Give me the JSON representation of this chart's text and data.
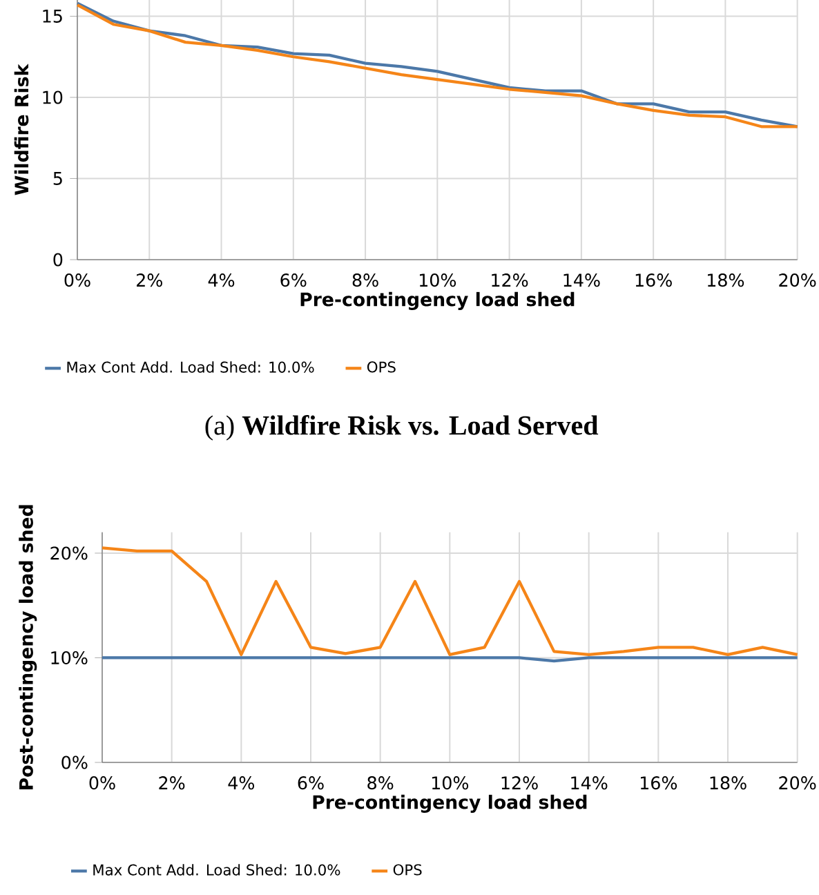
{
  "chart_data": [
    {
      "type": "line",
      "title": "(a) **Wildfire Risk vs. Load Served**",
      "xlabel": "Pre-contingency load shed",
      "ylabel": "Wildfire Risk",
      "x": [
        0,
        1,
        2,
        3,
        4,
        5,
        6,
        7,
        8,
        9,
        10,
        11,
        12,
        13,
        14,
        15,
        16,
        17,
        18,
        19,
        20
      ],
      "series": [
        {
          "name": "Max Cont Add. Load Shed: 10.0%",
          "color": "#4c78a8",
          "values": [
            15.8,
            14.7,
            14.1,
            13.8,
            13.2,
            13.1,
            12.7,
            12.6,
            12.1,
            11.9,
            11.6,
            11.1,
            10.6,
            10.4,
            10.4,
            9.6,
            9.6,
            9.1,
            9.1,
            8.6,
            8.2
          ]
        },
        {
          "name": "OPS",
          "color": "#f58518",
          "values": [
            15.7,
            14.5,
            14.1,
            13.4,
            13.2,
            12.9,
            12.5,
            12.2,
            11.8,
            11.4,
            11.1,
            10.8,
            10.5,
            10.3,
            10.1,
            9.6,
            9.2,
            8.9,
            8.8,
            8.2,
            8.2
          ]
        }
      ],
      "xlim": [
        0,
        20
      ],
      "ylim": [
        0,
        16
      ],
      "xticks": [
        {
          "value": 0,
          "label": "0%"
        },
        {
          "value": 2,
          "label": "2%"
        },
        {
          "value": 4,
          "label": "4%"
        },
        {
          "value": 6,
          "label": "6%"
        },
        {
          "value": 8,
          "label": "8%"
        },
        {
          "value": 10,
          "label": "10%"
        },
        {
          "value": 12,
          "label": "12%"
        },
        {
          "value": 14,
          "label": "14%"
        },
        {
          "value": 16,
          "label": "16%"
        },
        {
          "value": 18,
          "label": "18%"
        },
        {
          "value": 20,
          "label": "20%"
        }
      ],
      "yticks": [
        0,
        5,
        10,
        15
      ],
      "grid": true,
      "legend": "bottom"
    },
    {
      "type": "line",
      "xlabel": "Pre-contingency load shed",
      "ylabel": "Post-contingency load shed",
      "x": [
        0,
        1,
        2,
        3,
        4,
        5,
        6,
        7,
        8,
        9,
        10,
        11,
        12,
        13,
        14,
        15,
        16,
        17,
        18,
        19,
        20
      ],
      "series": [
        {
          "name": "Max Cont Add. Load Shed: 10.0%",
          "color": "#4c78a8",
          "values": [
            10,
            10,
            10,
            10,
            10,
            10,
            10,
            10,
            10,
            10,
            10,
            10,
            10,
            9.7,
            10,
            10,
            10,
            10,
            10,
            10,
            10
          ]
        },
        {
          "name": "OPS",
          "color": "#f58518",
          "values": [
            20.5,
            20.2,
            20.2,
            17.3,
            10.3,
            17.3,
            11.0,
            10.4,
            11.0,
            17.3,
            10.3,
            11.0,
            17.3,
            10.6,
            10.3,
            10.6,
            11.0,
            11.0,
            10.3,
            11.0,
            10.3
          ]
        }
      ],
      "xlim": [
        0,
        20
      ],
      "ylim": [
        0,
        22
      ],
      "xticks": [
        {
          "value": 0,
          "label": "0%"
        },
        {
          "value": 2,
          "label": "2%"
        },
        {
          "value": 4,
          "label": "4%"
        },
        {
          "value": 6,
          "label": "6%"
        },
        {
          "value": 8,
          "label": "8%"
        },
        {
          "value": 10,
          "label": "10%"
        },
        {
          "value": 12,
          "label": "12%"
        },
        {
          "value": 14,
          "label": "14%"
        },
        {
          "value": 16,
          "label": "16%"
        },
        {
          "value": 18,
          "label": "18%"
        },
        {
          "value": 20,
          "label": "20%"
        }
      ],
      "yticks": [
        {
          "value": 0,
          "label": "0%"
        },
        {
          "value": 10,
          "label": "10%"
        },
        {
          "value": 20,
          "label": "20%"
        }
      ],
      "grid": true,
      "legend": "bottom"
    }
  ]
}
